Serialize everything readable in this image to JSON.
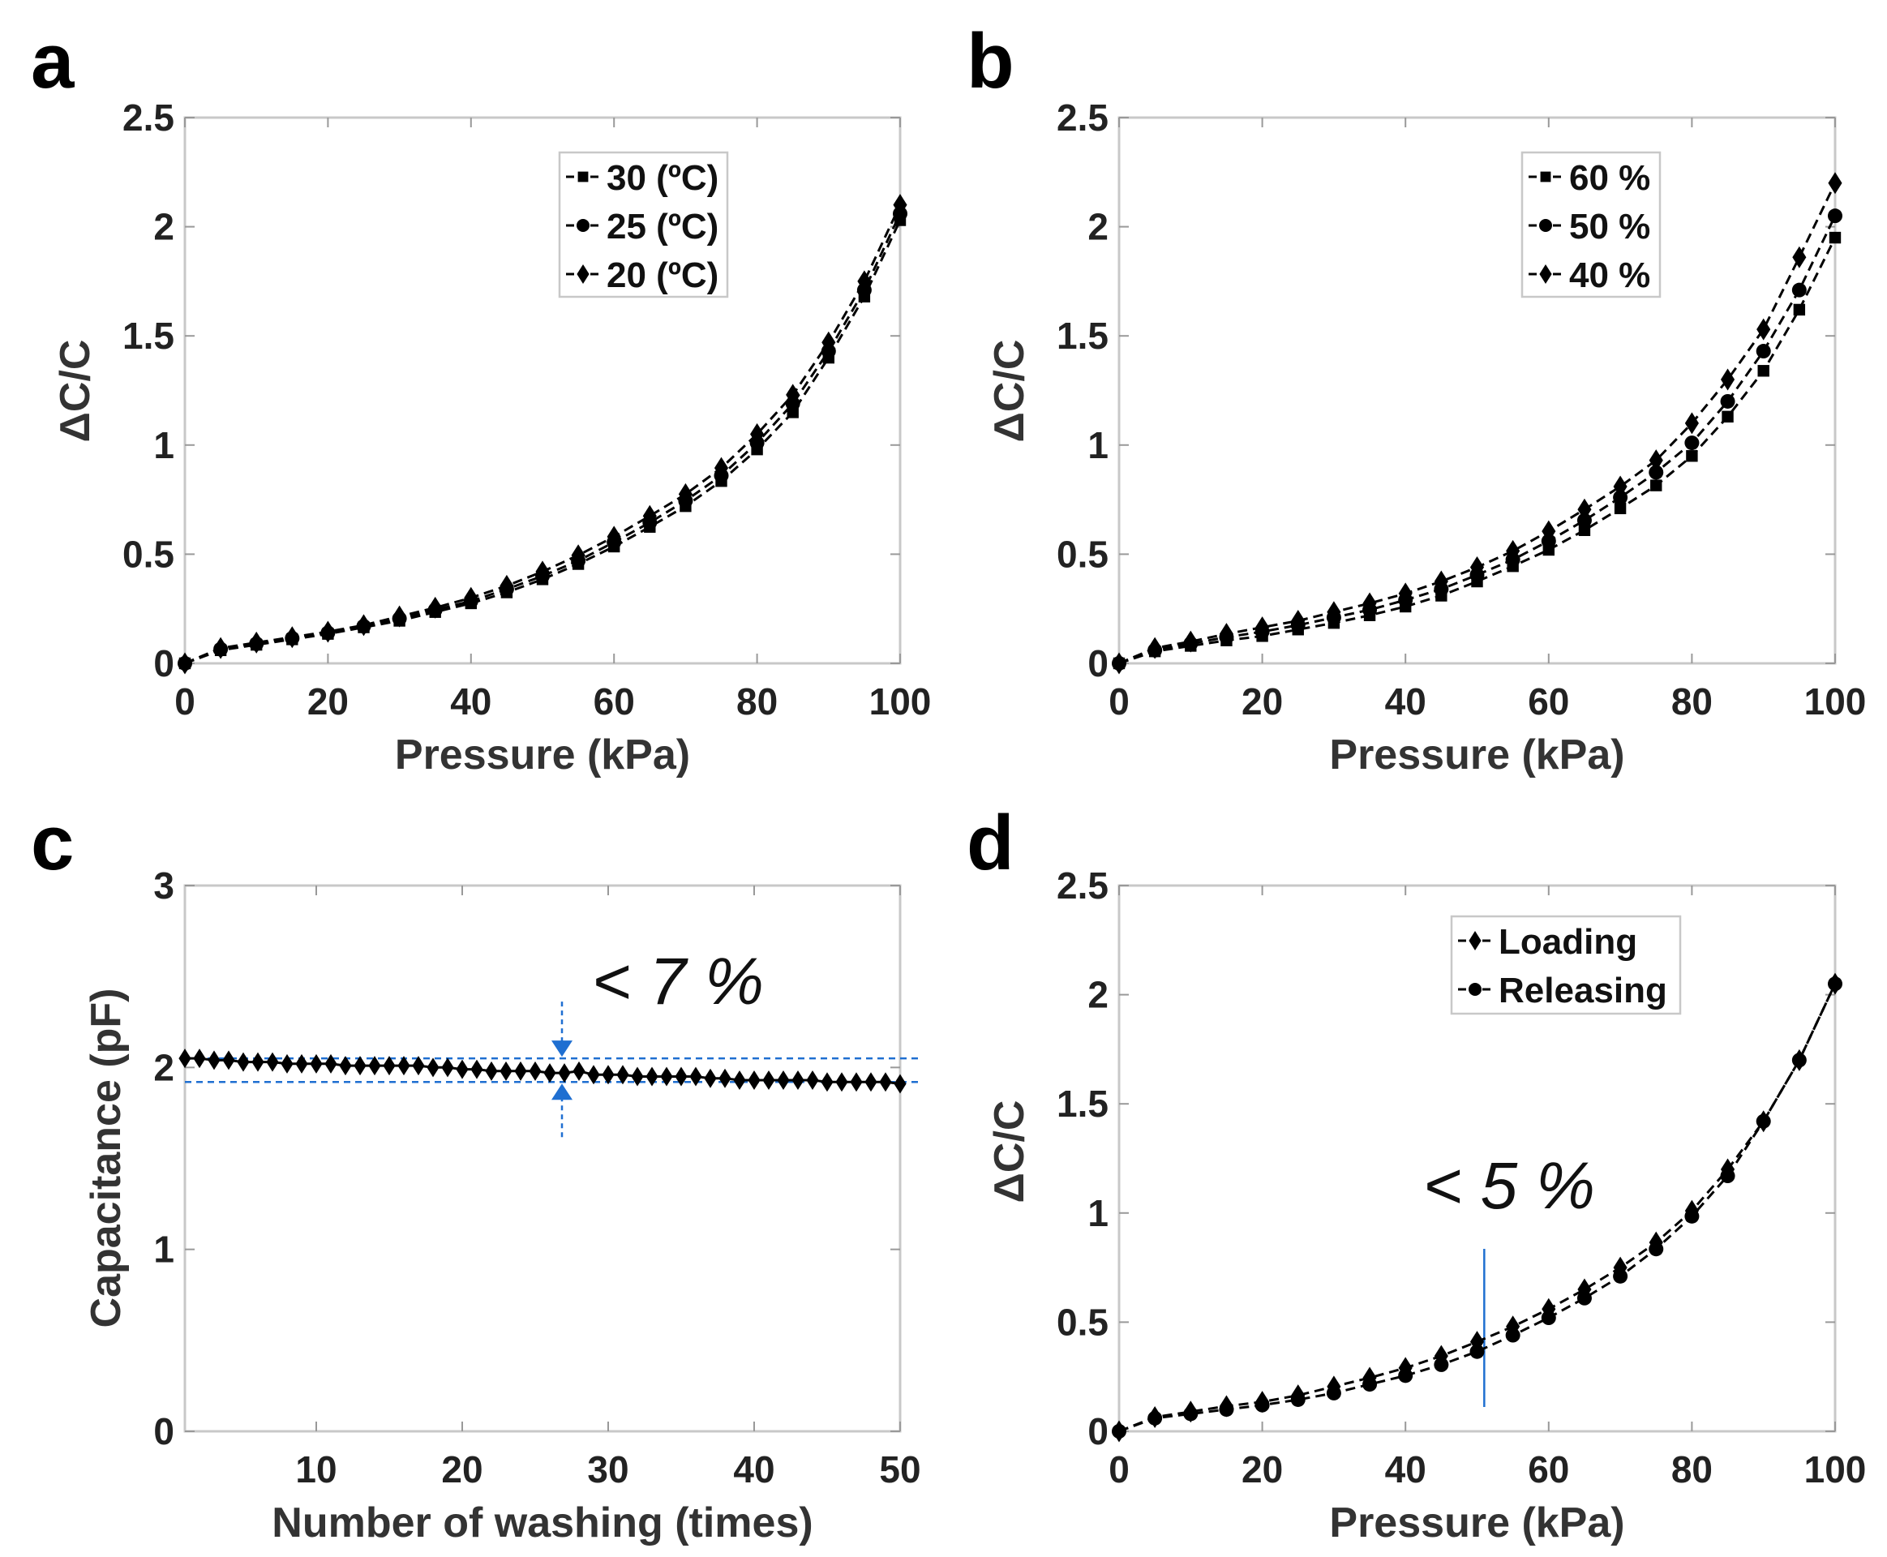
{
  "panel_labels": [
    "a",
    "b",
    "c",
    "d"
  ],
  "chart_data": [
    {
      "panel": "a",
      "type": "line",
      "title": "",
      "xlabel": "Pressure (kPa)",
      "ylabel": "ΔC/C",
      "xlim": [
        0,
        100
      ],
      "ylim": [
        0,
        2.5
      ],
      "xticks": [
        "0",
        "20",
        "40",
        "60",
        "80",
        "100"
      ],
      "yticks": [
        "0",
        "0.5",
        "1",
        "1.5",
        "2",
        "2.5"
      ],
      "legend_position": "top-center",
      "x": [
        0,
        5,
        10,
        15,
        20,
        25,
        30,
        35,
        40,
        45,
        50,
        55,
        60,
        65,
        70,
        75,
        80,
        85,
        90,
        95,
        100
      ],
      "series": [
        {
          "name": "30 (ºC)",
          "marker": "square",
          "values": [
            0,
            0.06,
            0.085,
            0.11,
            0.135,
            0.165,
            0.195,
            0.235,
            0.275,
            0.325,
            0.385,
            0.455,
            0.535,
            0.625,
            0.72,
            0.835,
            0.98,
            1.15,
            1.4,
            1.68,
            2.03
          ]
        },
        {
          "name": "25 (ºC)",
          "marker": "circle",
          "values": [
            0,
            0.065,
            0.09,
            0.115,
            0.14,
            0.17,
            0.205,
            0.245,
            0.285,
            0.34,
            0.4,
            0.47,
            0.555,
            0.645,
            0.745,
            0.86,
            1.01,
            1.19,
            1.43,
            1.71,
            2.06
          ]
        },
        {
          "name": "20 (ºC)",
          "marker": "diamond",
          "values": [
            0,
            0.07,
            0.095,
            0.12,
            0.145,
            0.175,
            0.215,
            0.255,
            0.3,
            0.355,
            0.42,
            0.495,
            0.58,
            0.675,
            0.775,
            0.895,
            1.05,
            1.23,
            1.47,
            1.75,
            2.1
          ]
        }
      ]
    },
    {
      "panel": "b",
      "type": "line",
      "title": "",
      "xlabel": "Pressure (kPa)",
      "ylabel": "ΔC/C",
      "xlim": [
        0,
        100
      ],
      "ylim": [
        0,
        2.5
      ],
      "xticks": [
        "0",
        "20",
        "40",
        "60",
        "80",
        "100"
      ],
      "yticks": [
        "0",
        "0.5",
        "1",
        "1.5",
        "2",
        "2.5"
      ],
      "legend_position": "top-center",
      "x": [
        0,
        5,
        10,
        15,
        20,
        25,
        30,
        35,
        40,
        45,
        50,
        55,
        60,
        65,
        70,
        75,
        80,
        85,
        90,
        95,
        100
      ],
      "series": [
        {
          "name": "60 %",
          "marker": "square",
          "values": [
            0,
            0.055,
            0.08,
            0.105,
            0.125,
            0.155,
            0.185,
            0.22,
            0.26,
            0.31,
            0.375,
            0.445,
            0.52,
            0.61,
            0.71,
            0.815,
            0.95,
            1.13,
            1.34,
            1.62,
            1.95
          ]
        },
        {
          "name": "50 %",
          "marker": "circle",
          "values": [
            0,
            0.06,
            0.09,
            0.12,
            0.145,
            0.175,
            0.21,
            0.245,
            0.29,
            0.34,
            0.405,
            0.475,
            0.56,
            0.655,
            0.76,
            0.875,
            1.01,
            1.2,
            1.43,
            1.71,
            2.05
          ]
        },
        {
          "name": "40 %",
          "marker": "diamond",
          "values": [
            0,
            0.07,
            0.1,
            0.135,
            0.165,
            0.195,
            0.235,
            0.275,
            0.32,
            0.375,
            0.44,
            0.515,
            0.605,
            0.705,
            0.81,
            0.93,
            1.1,
            1.3,
            1.53,
            1.86,
            2.2
          ]
        }
      ]
    },
    {
      "panel": "c",
      "type": "line",
      "title": "",
      "xlabel": "Number of washing (times)",
      "ylabel": "Capacitance (pF)",
      "xlim": [
        1,
        50
      ],
      "ylim": [
        0,
        3
      ],
      "xticks": [
        "10",
        "20",
        "30",
        "40",
        "50"
      ],
      "yticks": [
        "0",
        "1",
        "2",
        "3"
      ],
      "annotation": "< 7 %",
      "reference_lines": [
        2.05,
        1.92
      ],
      "x": [
        1,
        2,
        3,
        4,
        5,
        6,
        7,
        8,
        9,
        10,
        11,
        12,
        13,
        14,
        15,
        16,
        17,
        18,
        19,
        20,
        21,
        22,
        23,
        24,
        25,
        26,
        27,
        28,
        29,
        30,
        31,
        32,
        33,
        34,
        35,
        36,
        37,
        38,
        39,
        40,
        41,
        42,
        43,
        44,
        45,
        46,
        47,
        48,
        49,
        50
      ],
      "series": [
        {
          "name": "Capacitance",
          "marker": "diamond",
          "values": [
            2.05,
            2.05,
            2.04,
            2.04,
            2.03,
            2.03,
            2.03,
            2.02,
            2.02,
            2.02,
            2.02,
            2.01,
            2.01,
            2.01,
            2.01,
            2.01,
            2.01,
            2.0,
            2.0,
            1.99,
            1.99,
            1.98,
            1.98,
            1.98,
            1.98,
            1.97,
            1.97,
            1.98,
            1.96,
            1.96,
            1.96,
            1.95,
            1.95,
            1.95,
            1.95,
            1.95,
            1.94,
            1.94,
            1.93,
            1.93,
            1.93,
            1.93,
            1.93,
            1.93,
            1.92,
            1.92,
            1.92,
            1.92,
            1.92,
            1.91
          ]
        }
      ]
    },
    {
      "panel": "d",
      "type": "line",
      "title": "",
      "xlabel": "Pressure (kPa)",
      "ylabel": "ΔC/C",
      "xlim": [
        0,
        100
      ],
      "ylim": [
        0,
        2.5
      ],
      "xticks": [
        "0",
        "20",
        "40",
        "60",
        "80",
        "100"
      ],
      "yticks": [
        "0",
        "0.5",
        "1",
        "1.5",
        "2",
        "2.5"
      ],
      "legend_position": "top-right",
      "annotation": "< 5 %",
      "marker_line_x": 51,
      "x": [
        0,
        5,
        10,
        15,
        20,
        25,
        30,
        35,
        40,
        45,
        50,
        55,
        60,
        65,
        70,
        75,
        80,
        85,
        90,
        95,
        100
      ],
      "series": [
        {
          "name": "Loading",
          "marker": "diamond",
          "values": [
            0,
            0.065,
            0.09,
            0.115,
            0.135,
            0.165,
            0.205,
            0.245,
            0.29,
            0.345,
            0.41,
            0.48,
            0.56,
            0.65,
            0.75,
            0.865,
            1.01,
            1.2,
            1.42,
            1.7,
            2.05
          ]
        },
        {
          "name": "Releasing",
          "marker": "circle",
          "values": [
            0,
            0.06,
            0.08,
            0.1,
            0.12,
            0.145,
            0.175,
            0.215,
            0.255,
            0.305,
            0.365,
            0.44,
            0.52,
            0.61,
            0.71,
            0.835,
            0.985,
            1.17,
            1.42,
            1.7,
            2.05
          ]
        }
      ]
    }
  ]
}
